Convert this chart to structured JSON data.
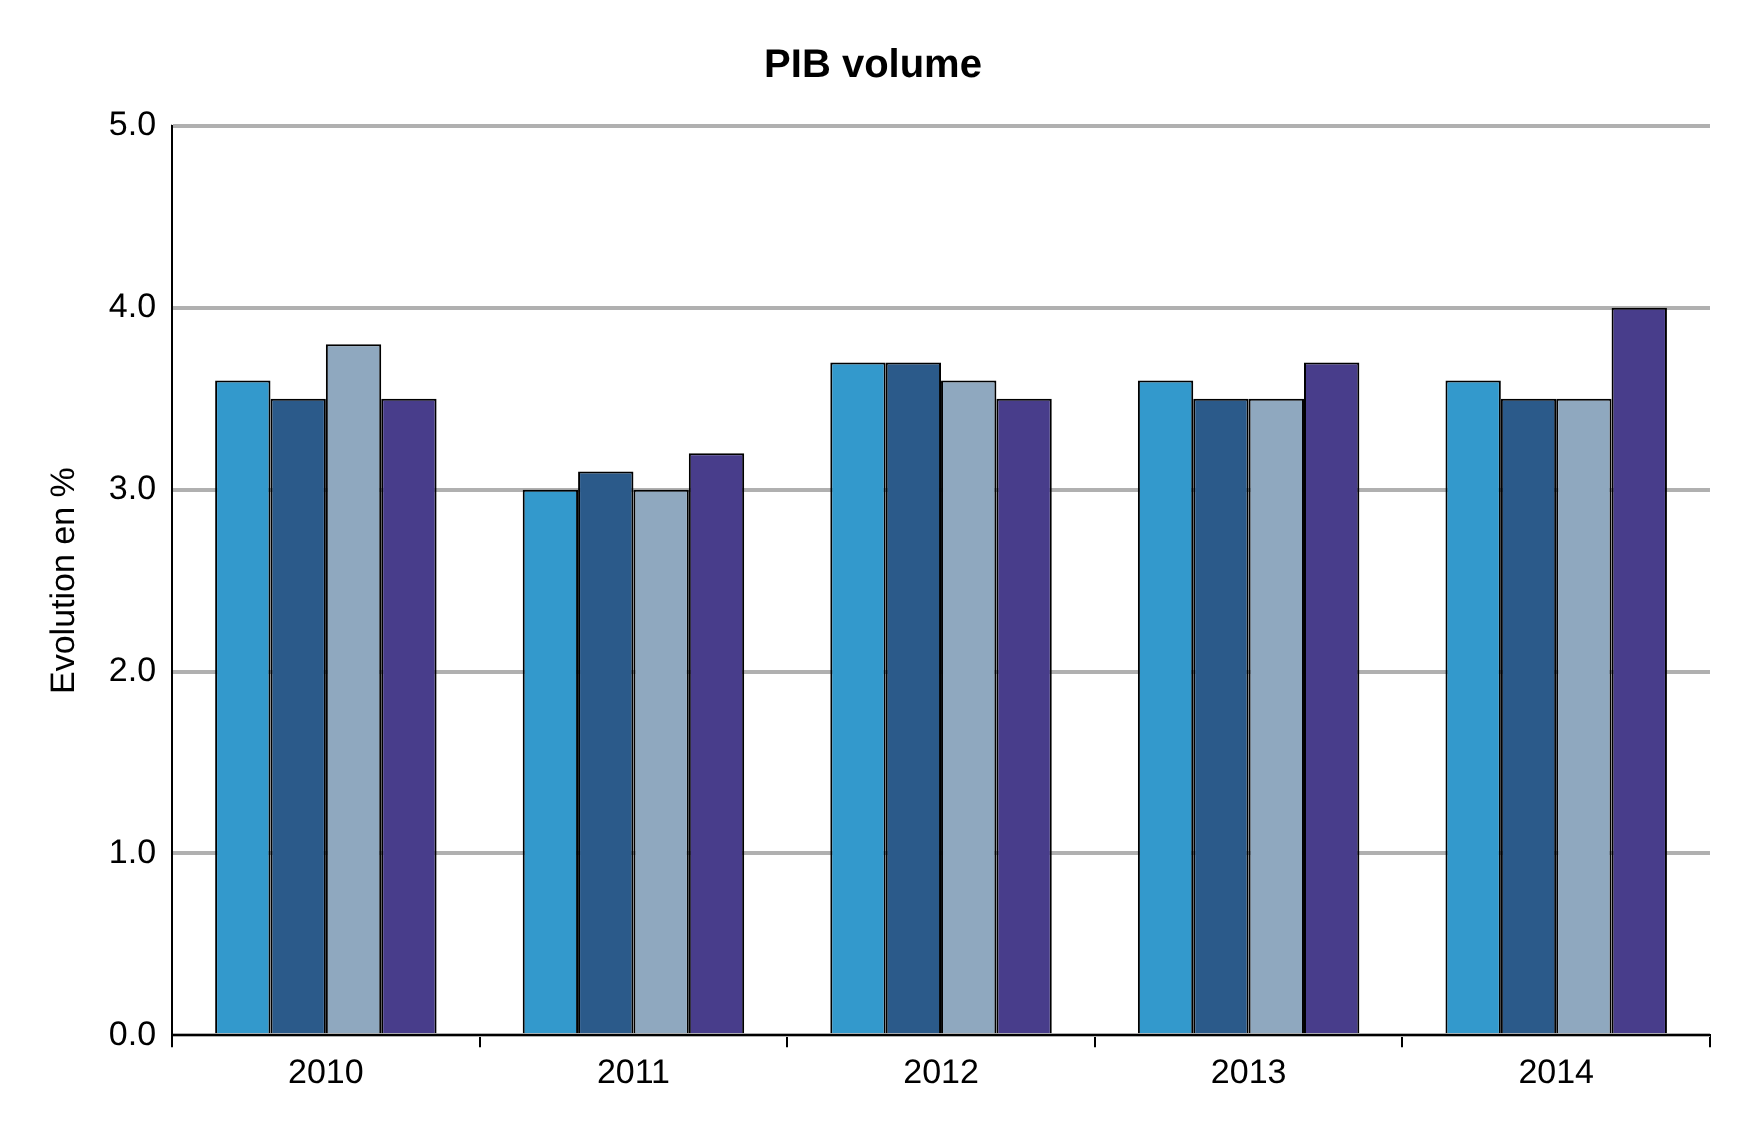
{
  "chart_data": {
    "type": "bar",
    "title": "PIB volume",
    "ylabel": "Evolution en %",
    "categories": [
      "2010",
      "2011",
      "2012",
      "2013",
      "2014"
    ],
    "series": [
      {
        "color": "#3399cc",
        "values": [
          3.6,
          3.0,
          3.7,
          3.6,
          3.6
        ]
      },
      {
        "color": "#2b5a8a",
        "values": [
          3.5,
          3.1,
          3.7,
          3.5,
          3.5
        ]
      },
      {
        "color": "#8fa8bf",
        "values": [
          3.8,
          3.0,
          3.6,
          3.5,
          3.5
        ]
      },
      {
        "color": "#483d8b",
        "values": [
          3.5,
          3.2,
          3.5,
          3.7,
          4.0
        ]
      }
    ],
    "ylim": [
      0,
      5
    ],
    "yticks": [
      {
        "value": 0,
        "label": "0.0"
      },
      {
        "value": 1,
        "label": "1.0"
      },
      {
        "value": 2,
        "label": "2.0"
      },
      {
        "value": 3,
        "label": "3.0"
      },
      {
        "value": 4,
        "label": "4.0"
      },
      {
        "value": 5,
        "label": "5.0"
      }
    ],
    "grid": "y",
    "legend": false
  }
}
